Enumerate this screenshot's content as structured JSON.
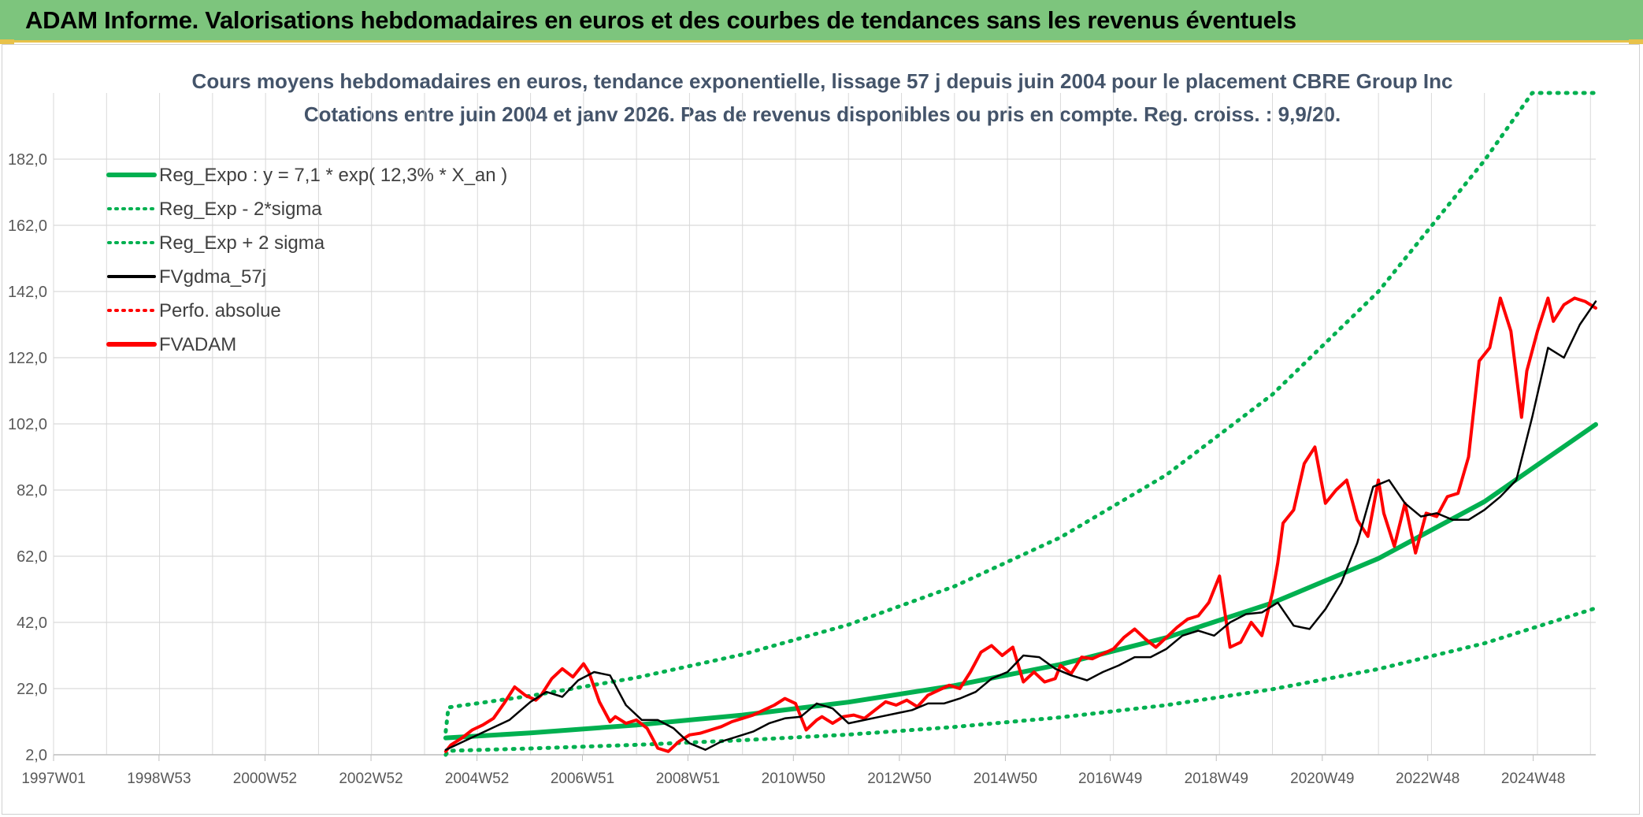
{
  "header": {
    "title": "ADAM Informe. Valorisations hebdomadaires en euros et des courbes de tendances sans les revenus éventuels"
  },
  "colors": {
    "header_bg": "#7dc57d",
    "accent": "#e8c24a",
    "reg_green": "#00b050",
    "fvadam_red": "#ff0000",
    "fvgdma_black": "#000000"
  },
  "chart_data": {
    "type": "line",
    "title": "Cours moyens hebdomadaires en euros, tendance exponentielle, lissage 57 j depuis juin 2004 pour le placement CBRE Group Inc",
    "subtitle": "Cotations entre juin 2004 et janv 2026. Pas de revenus disponibles ou pris en compte. Reg. croiss. : 9,9/20.",
    "xlabel": "",
    "ylabel": "",
    "x_range": [
      1997.0,
      2026.1
    ],
    "ylim": [
      2.0,
      202.0
    ],
    "y_ticks": [
      "2,0",
      "22,0",
      "42,0",
      "62,0",
      "82,0",
      "102,0",
      "122,0",
      "142,0",
      "162,0",
      "182,0"
    ],
    "x_ticks": [
      {
        "label": "1997W01",
        "x": 1997.0
      },
      {
        "label": "1998W53",
        "x": 1998.99
      },
      {
        "label": "2000W52",
        "x": 2000.99
      },
      {
        "label": "2002W52",
        "x": 2002.99
      },
      {
        "label": "2004W52",
        "x": 2004.99
      },
      {
        "label": "2006W51",
        "x": 2006.98
      },
      {
        "label": "2008W51",
        "x": 2008.97
      },
      {
        "label": "2010W50",
        "x": 2010.96
      },
      {
        "label": "2012W50",
        "x": 2012.96
      },
      {
        "label": "2014W50",
        "x": 2014.96
      },
      {
        "label": "2016W49",
        "x": 2016.94
      },
      {
        "label": "2018W49",
        "x": 2018.94
      },
      {
        "label": "2020W49",
        "x": 2020.94
      },
      {
        "label": "2022W48",
        "x": 2022.93
      },
      {
        "label": "2024W48",
        "x": 2024.92
      }
    ],
    "grid": true,
    "legend_position": "top-left",
    "series": [
      {
        "name": "Reg_Expo : y = 7,1 * exp( 12,3% *  X_an )",
        "style": "solid-thick",
        "color": "#00b050",
        "x": [
          2004.4,
          2006,
          2008,
          2010,
          2012,
          2014,
          2016,
          2018,
          2020,
          2022,
          2024,
          2026.1
        ],
        "y": [
          7.1,
          8.6,
          11.0,
          14.0,
          17.9,
          22.9,
          29.3,
          37.4,
          47.9,
          61.3,
          78.5,
          101.8
        ]
      },
      {
        "name": "Reg_Exp - 2*sigma",
        "style": "dotted",
        "color": "#00b050",
        "x": [
          2004.4,
          2004.45,
          2006,
          2008,
          2010,
          2012,
          2014,
          2016,
          2018,
          2020,
          2022,
          2024,
          2026.1
        ],
        "y": [
          2.0,
          3.2,
          3.9,
          5.0,
          6.4,
          8.1,
          10.4,
          13.3,
          17.0,
          21.8,
          27.9,
          35.7,
          46.3
        ]
      },
      {
        "name": "Reg_Exp + 2 sigma",
        "style": "dotted",
        "color": "#00b050",
        "x": [
          2004.4,
          2004.45,
          2006,
          2008,
          2010,
          2012,
          2014,
          2016,
          2018,
          2020,
          2022,
          2024,
          2024.9,
          2026.1
        ],
        "y": [
          9.0,
          16.3,
          19.8,
          25.3,
          32.3,
          41.3,
          52.9,
          67.7,
          86.6,
          110.9,
          142.0,
          181.6,
          202.0,
          202.0
        ]
      },
      {
        "name": "FVgdma_57j",
        "style": "solid",
        "color": "#000000",
        "x": [
          2004.4,
          2004.8,
          2005.2,
          2005.6,
          2006.0,
          2006.3,
          2006.6,
          2006.9,
          2007.2,
          2007.5,
          2007.8,
          2008.1,
          2008.4,
          2008.7,
          2009.0,
          2009.3,
          2009.6,
          2009.9,
          2010.2,
          2010.5,
          2010.8,
          2011.1,
          2011.4,
          2011.7,
          2012.0,
          2012.3,
          2012.6,
          2012.9,
          2013.2,
          2013.5,
          2013.8,
          2014.1,
          2014.4,
          2014.7,
          2015.0,
          2015.3,
          2015.6,
          2015.9,
          2016.2,
          2016.5,
          2016.8,
          2017.1,
          2017.4,
          2017.7,
          2018.0,
          2018.3,
          2018.6,
          2018.9,
          2019.2,
          2019.5,
          2019.8,
          2020.1,
          2020.4,
          2020.7,
          2021.0,
          2021.3,
          2021.6,
          2021.9,
          2022.2,
          2022.5,
          2022.8,
          2023.1,
          2023.4,
          2023.7,
          2024.0,
          2024.3,
          2024.6,
          2024.9,
          2025.2,
          2025.5,
          2025.8,
          2026.1
        ],
        "y": [
          3.5,
          6.5,
          9.5,
          12.5,
          18.0,
          21.0,
          19.5,
          24.5,
          27.0,
          26.0,
          17.0,
          12.5,
          12.5,
          10.0,
          5.5,
          3.5,
          6.0,
          7.5,
          9.0,
          11.5,
          13.0,
          13.5,
          17.5,
          16.0,
          11.5,
          12.5,
          13.5,
          14.5,
          15.5,
          17.5,
          17.5,
          19.0,
          21.0,
          25.0,
          27.0,
          32.0,
          31.5,
          28.0,
          26.0,
          24.5,
          27.0,
          29.0,
          31.5,
          31.5,
          34.0,
          38.0,
          39.5,
          38.0,
          42.0,
          44.5,
          45.0,
          48.0,
          41.0,
          40.0,
          46.0,
          54.0,
          66.0,
          83.0,
          85.0,
          78.0,
          74.0,
          75.0,
          73.0,
          73.0,
          76.0,
          80.0,
          85.0,
          104.0,
          125.0,
          122.0,
          132.0,
          139.0
        ]
      },
      {
        "name": "Perfo. absolue",
        "style": "dotted",
        "color": "#ff0000",
        "x": [],
        "y": []
      },
      {
        "name": "FVADAM",
        "style": "solid-thick",
        "color": "#ff0000",
        "x": [
          2004.4,
          2004.5,
          2004.7,
          2004.9,
          2005.1,
          2005.3,
          2005.5,
          2005.7,
          2005.9,
          2006.1,
          2006.2,
          2006.4,
          2006.6,
          2006.8,
          2007.0,
          2007.1,
          2007.3,
          2007.5,
          2007.6,
          2007.8,
          2008.0,
          2008.2,
          2008.4,
          2008.6,
          2008.8,
          2009.0,
          2009.2,
          2009.4,
          2009.6,
          2009.8,
          2010.0,
          2010.2,
          2010.4,
          2010.6,
          2010.8,
          2011.0,
          2011.2,
          2011.4,
          2011.5,
          2011.7,
          2011.9,
          2012.1,
          2012.3,
          2012.5,
          2012.7,
          2012.9,
          2013.1,
          2013.3,
          2013.5,
          2013.7,
          2013.9,
          2014.1,
          2014.3,
          2014.5,
          2014.7,
          2014.9,
          2015.1,
          2015.3,
          2015.5,
          2015.7,
          2015.9,
          2016.0,
          2016.2,
          2016.4,
          2016.6,
          2016.8,
          2017.0,
          2017.2,
          2017.4,
          2017.6,
          2017.8,
          2018.0,
          2018.2,
          2018.4,
          2018.6,
          2018.8,
          2019.0,
          2019.2,
          2019.4,
          2019.6,
          2019.8,
          2020.0,
          2020.1,
          2020.2,
          2020.4,
          2020.6,
          2020.8,
          2021.0,
          2021.2,
          2021.4,
          2021.6,
          2021.8,
          2022.0,
          2022.1,
          2022.3,
          2022.5,
          2022.7,
          2022.9,
          2023.1,
          2023.3,
          2023.5,
          2023.7,
          2023.9,
          2024.1,
          2024.3,
          2024.5,
          2024.7,
          2024.8,
          2025.0,
          2025.2,
          2025.3,
          2025.5,
          2025.7,
          2025.9,
          2026.1
        ],
        "y": [
          3.0,
          5.0,
          7.0,
          9.5,
          11.0,
          13.0,
          17.5,
          22.5,
          20.0,
          18.5,
          20.0,
          25.0,
          28.0,
          25.5,
          29.5,
          27.0,
          18.0,
          12.0,
          13.5,
          11.5,
          12.5,
          10.0,
          4.0,
          3.0,
          6.0,
          8.0,
          8.5,
          9.5,
          10.5,
          12.0,
          13.0,
          14.0,
          15.5,
          17.0,
          19.0,
          17.5,
          9.5,
          12.5,
          13.5,
          11.5,
          13.5,
          14.0,
          13.0,
          15.5,
          18.0,
          17.0,
          18.5,
          16.5,
          20.0,
          21.5,
          23.0,
          22.0,
          27.0,
          33.0,
          35.0,
          32.0,
          34.5,
          24.0,
          27.0,
          24.0,
          25.0,
          29.0,
          26.5,
          31.5,
          31.0,
          32.5,
          34.0,
          37.5,
          40.0,
          37.0,
          34.5,
          37.5,
          40.5,
          43.0,
          44.0,
          48.0,
          56.0,
          34.5,
          36.0,
          42.0,
          38.0,
          51.0,
          60.0,
          72.0,
          76.0,
          90.0,
          95.0,
          78.0,
          82.0,
          85.0,
          73.0,
          68.0,
          85.0,
          75.0,
          65.0,
          78.0,
          63.0,
          75.0,
          74.0,
          80.0,
          81.0,
          92.0,
          121.0,
          125.0,
          140.0,
          130.0,
          104.0,
          118.0,
          130.0,
          140.0,
          133.0,
          138.0,
          140.0,
          139.0,
          137.0
        ]
      }
    ]
  }
}
